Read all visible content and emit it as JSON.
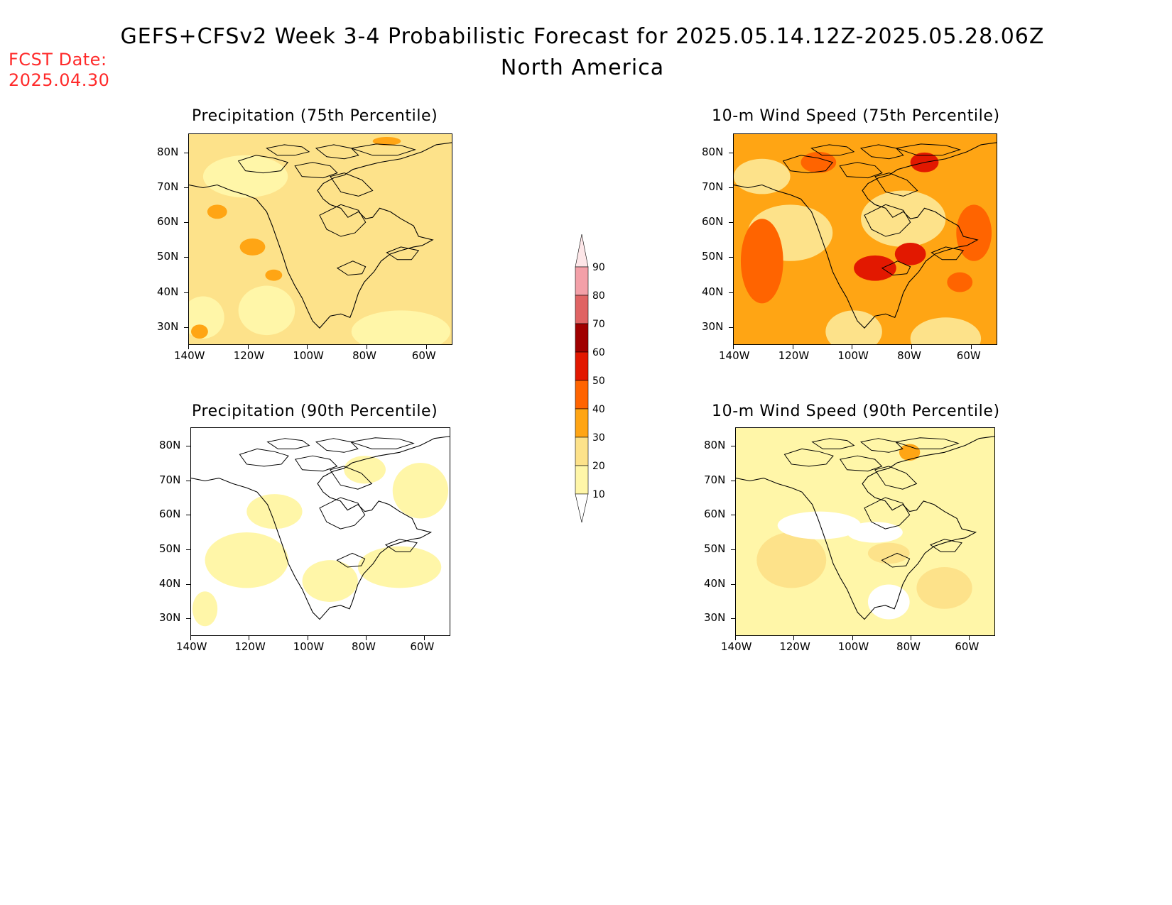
{
  "header": {
    "title": "GEFS+CFSv2 Week 3-4 Probabilistic Forecast for 2025.05.14.12Z-2025.05.28.06Z",
    "subtitle": "North America",
    "fcst_label": "FCST Date:",
    "fcst_value": "2025.04.30"
  },
  "panels": [
    {
      "id": "precip-75",
      "title": "Precipitation (75th Percentile)",
      "base_fill": "#fde28a"
    },
    {
      "id": "wind-75",
      "title": "10-m Wind Speed (75th Percentile)",
      "base_fill": "#ffa514"
    },
    {
      "id": "precip-90",
      "title": "Precipitation (90th Percentile)",
      "base_fill": "#ffffff"
    },
    {
      "id": "wind-90",
      "title": "10-m Wind Speed (90th Percentile)",
      "base_fill": "#fff6a8"
    }
  ],
  "axes": {
    "lat_labels": [
      "80N",
      "70N",
      "60N",
      "50N",
      "40N",
      "30N"
    ],
    "lon_labels": [
      "140W",
      "120W",
      "100W",
      "80W",
      "60W"
    ]
  },
  "colorbar": {
    "levels": [
      "90",
      "80",
      "70",
      "60",
      "50",
      "40",
      "30",
      "20",
      "10"
    ],
    "colors": [
      "#f3a0a8",
      "#e06464",
      "#a00000",
      "#e21800",
      "#ff6400",
      "#ffa514",
      "#fde28a",
      "#fff6a8"
    ]
  }
}
